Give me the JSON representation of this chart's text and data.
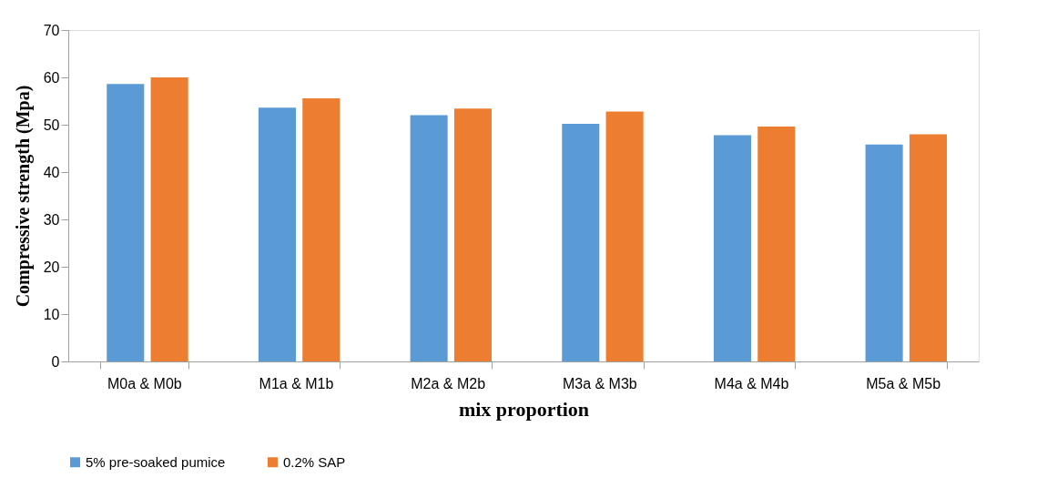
{
  "chart_data": {
    "type": "bar",
    "xlabel": "mix proportion",
    "ylabel": "Compressive strength (Mpa)",
    "categories": [
      "M0a & M0b",
      "M1a & M1b",
      "M2a & M2b",
      "M3a & M3b",
      "M4a & M4b",
      "M5a & M5b"
    ],
    "series": [
      {
        "name": "5%  pre-soaked pumice",
        "color": "#5b9bd5",
        "values": [
          58.6,
          53.6,
          52.0,
          50.2,
          47.8,
          45.8
        ]
      },
      {
        "name": "0.2% SAP",
        "color": "#ed7d31",
        "values": [
          60.0,
          55.6,
          53.4,
          52.8,
          49.6,
          48.0
        ]
      }
    ],
    "ylim": [
      0,
      70
    ],
    "yticks": [
      0,
      10,
      20,
      30,
      40,
      50,
      60,
      70
    ],
    "grid": false,
    "legend": "bottom"
  }
}
